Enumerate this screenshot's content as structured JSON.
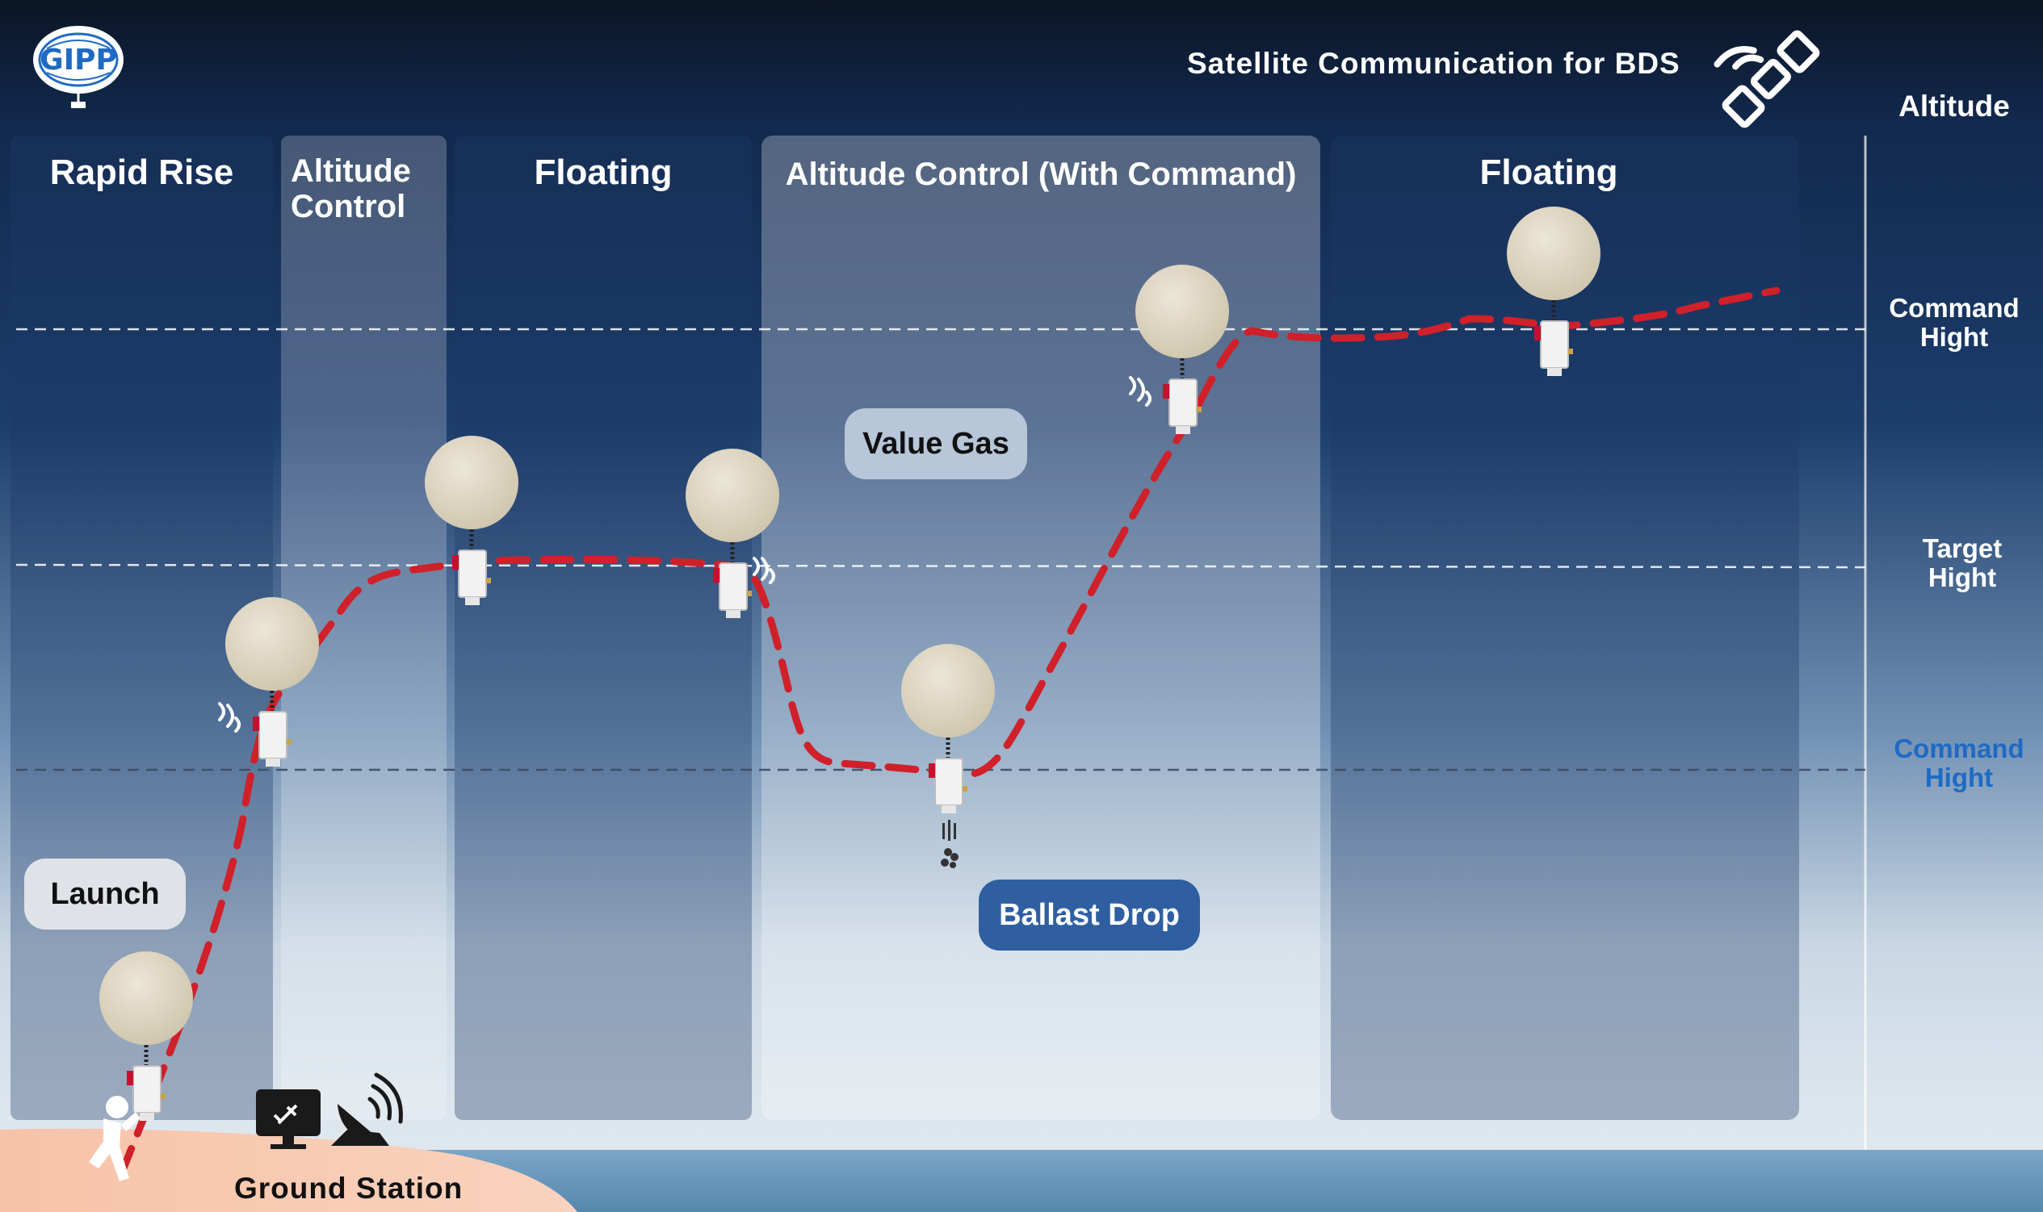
{
  "header": {
    "logo_text": "GIPP",
    "title": "Satellite Communication for BDS"
  },
  "axis": {
    "title": "Altitude",
    "levels": [
      {
        "label_line1": "Command",
        "label_line2": "Hight",
        "color": "#ffffff"
      },
      {
        "label_line1": "Target",
        "label_line2": "Hight",
        "color": "#ffffff"
      },
      {
        "label_line1": "Command",
        "label_line2": "Hight",
        "color": "#1e6ac4"
      }
    ]
  },
  "phases": [
    {
      "label": "Rapid Rise"
    },
    {
      "label_line1": "Altitude",
      "label_line2": "Control"
    },
    {
      "label": "Floating"
    },
    {
      "label": "Altitude Control (With Command)"
    },
    {
      "label": "Floating"
    }
  ],
  "tags": {
    "launch": "Launch",
    "value_gas": "Value Gas",
    "ballast_drop": "Ballast Drop"
  },
  "ground": {
    "label": "Ground Station"
  },
  "colors": {
    "trajectory": "#d0202a",
    "balloon": "#dcd3bf",
    "ballast_tag": "#2f5fa0",
    "accent_blue": "#1e6ac4"
  }
}
